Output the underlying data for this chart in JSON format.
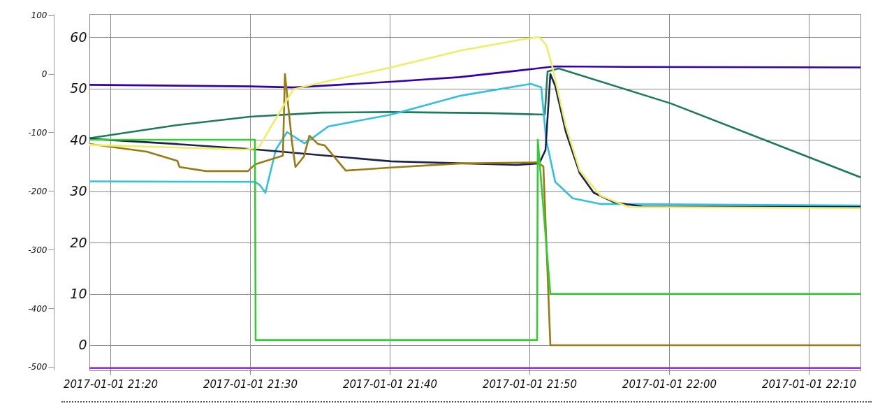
{
  "chart_data": {
    "type": "line",
    "grid": true,
    "xlim": [
      "2017-01-01T21:18:30",
      "2017-01-01T22:13:42"
    ],
    "xticks": [
      {
        "value": "2017-01-01T21:20",
        "label": "2017-01-01 21:20"
      },
      {
        "value": "2017-01-01T21:30",
        "label": "2017-01-01 21:30"
      },
      {
        "value": "2017-01-01T21:40",
        "label": "2017-01-01 21:40"
      },
      {
        "value": "2017-01-01T21:50",
        "label": "2017-01-01 21:50"
      },
      {
        "value": "2017-01-01T22:00",
        "label": "2017-01-01 22:00"
      },
      {
        "value": "2017-01-01T22:10",
        "label": "2017-01-01 22:10"
      }
    ],
    "ylim": [
      -4.9,
      64.5
    ],
    "yticks": [
      0,
      10,
      20,
      30,
      40,
      50,
      60
    ],
    "y2lim": [
      -506,
      102
    ],
    "y2ticks": [
      -500,
      -400,
      -300,
      -200,
      -100,
      0,
      100
    ],
    "series": [
      {
        "color": "#3300aa",
        "x": [
          "2017-01-01T21:18:30",
          "2017-01-01T21:30:00",
          "2017-01-01T21:33:09",
          "2017-01-01T21:40:06",
          "2017-01-01T21:45:00",
          "2017-01-01T21:49:36",
          "2017-01-01T21:51:48",
          "2017-01-01T21:57:06",
          "2017-01-01T22:13:42"
        ],
        "values": [
          50.7,
          50.4,
          50.2,
          51.3,
          52.2,
          53.6,
          54.3,
          54.2,
          54.1
        ]
      },
      {
        "color": "#1f7a5c",
        "x": [
          "2017-01-01T21:18:30",
          "2017-01-01T21:24:36",
          "2017-01-01T21:30:00",
          "2017-01-01T21:35:06",
          "2017-01-01T21:40:06",
          "2017-01-01T21:47:06",
          "2017-01-01T21:51:06",
          "2017-01-01T21:51:18",
          "2017-01-01T21:52:06",
          "2017-01-01T22:00:06",
          "2017-01-01T22:13:42"
        ],
        "values": [
          40.3,
          42.8,
          44.5,
          45.3,
          45.4,
          45.2,
          44.9,
          53.3,
          53.9,
          47.1,
          32.7
        ]
      },
      {
        "color": "#33c0e0",
        "x": [
          "2017-01-01T21:18:30",
          "2017-01-01T21:30:21",
          "2017-01-01T21:30:42",
          "2017-01-01T21:31:06",
          "2017-01-01T21:31:51",
          "2017-01-01T21:32:39",
          "2017-01-01T21:33:54",
          "2017-01-01T21:34:36",
          "2017-01-01T21:35:36",
          "2017-01-01T21:40:06",
          "2017-01-01T21:45:06",
          "2017-01-01T21:50:06",
          "2017-01-01T21:50:51",
          "2017-01-01T21:51:12",
          "2017-01-01T21:51:51",
          "2017-01-01T21:53:06",
          "2017-01-01T21:55:06",
          "2017-01-01T22:13:42"
        ],
        "values": [
          31.9,
          31.8,
          31.2,
          29.7,
          38.1,
          41.5,
          39.3,
          40.6,
          42.6,
          44.9,
          48.6,
          50.9,
          50.2,
          40,
          31.8,
          28.6,
          27.5,
          27.2
        ]
      },
      {
        "color": "#1c2250",
        "x": [
          "2017-01-01T21:18:30",
          "2017-01-01T21:24:36",
          "2017-01-01T21:30:30",
          "2017-01-01T21:40:06",
          "2017-01-01T21:49:06",
          "2017-01-01T21:50:42",
          "2017-01-01T21:51:09",
          "2017-01-01T21:51:30",
          "2017-01-01T21:51:51",
          "2017-01-01T21:52:36",
          "2017-01-01T21:53:36",
          "2017-01-01T21:54:36",
          "2017-01-01T21:56:06",
          "2017-01-01T21:58:06",
          "2017-01-01T22:13:42"
        ],
        "values": [
          40.2,
          39.2,
          38.1,
          35.8,
          35.1,
          35.4,
          38,
          52.8,
          50.5,
          41.6,
          33.5,
          29.7,
          27.8,
          27,
          26.9
        ]
      },
      {
        "color": "#9a7a12",
        "x": [
          "2017-01-01T21:18:30",
          "2017-01-01T21:22:36",
          "2017-01-01T21:24:48",
          "2017-01-01T21:24:57",
          "2017-01-01T21:26:51",
          "2017-01-01T21:29:51",
          "2017-01-01T21:30:21",
          "2017-01-01T21:32:21",
          "2017-01-01T21:32:30",
          "2017-01-01T21:33:00",
          "2017-01-01T21:33:15",
          "2017-01-01T21:33:51",
          "2017-01-01T21:34:15",
          "2017-01-01T21:34:51",
          "2017-01-01T21:35:21",
          "2017-01-01T21:36:51",
          "2017-01-01T21:40:06",
          "2017-01-01T21:45:06",
          "2017-01-01T21:50:36",
          "2017-01-01T21:51:00",
          "2017-01-01T21:51:30",
          "2017-01-01T22:13:42"
        ],
        "values": [
          39.2,
          37.7,
          35.9,
          34.7,
          33.9,
          33.9,
          35.2,
          36.9,
          52.8,
          39.6,
          34.7,
          36.7,
          40.8,
          39.2,
          38.9,
          34,
          34.6,
          35.4,
          35.6,
          34.8,
          0,
          0
        ]
      },
      {
        "color": "#eeee66",
        "x": [
          "2017-01-01T21:18:30",
          "2017-01-01T21:24:36",
          "2017-01-01T21:29:36",
          "2017-01-01T21:30:36",
          "2017-01-01T21:31:36",
          "2017-01-01T21:33:06",
          "2017-01-01T21:34:21",
          "2017-01-01T21:40:06",
          "2017-01-01T21:45:06",
          "2017-01-01T21:49:36",
          "2017-01-01T21:50:42",
          "2017-01-01T21:51:12",
          "2017-01-01T21:51:36",
          "2017-01-01T21:52:36",
          "2017-01-01T21:53:36",
          "2017-01-01T21:55:06",
          "2017-01-01T21:57:06",
          "2017-01-01T22:13:42"
        ],
        "values": [
          39,
          38.5,
          38.1,
          38.4,
          43,
          49.8,
          50.7,
          54.1,
          57.4,
          59.6,
          60,
          58.5,
          54.7,
          42.7,
          34,
          29.1,
          26.9,
          26.7
        ]
      },
      {
        "color": "#33cc33",
        "x": [
          "2017-01-01T21:18:30",
          "2017-01-01T21:30:21",
          "2017-01-01T21:30:24",
          "2017-01-01T21:50:33",
          "2017-01-01T21:50:36",
          "2017-01-01T21:51:30",
          "2017-01-01T22:13:42"
        ],
        "values": [
          40,
          40,
          1,
          1,
          40,
          10,
          10
        ]
      },
      {
        "color": "#9933dd",
        "axis": "y2",
        "x": [
          "2017-01-01T21:18:30",
          "2017-01-01T22:13:42"
        ],
        "values": [
          -502,
          -502
        ]
      }
    ]
  }
}
